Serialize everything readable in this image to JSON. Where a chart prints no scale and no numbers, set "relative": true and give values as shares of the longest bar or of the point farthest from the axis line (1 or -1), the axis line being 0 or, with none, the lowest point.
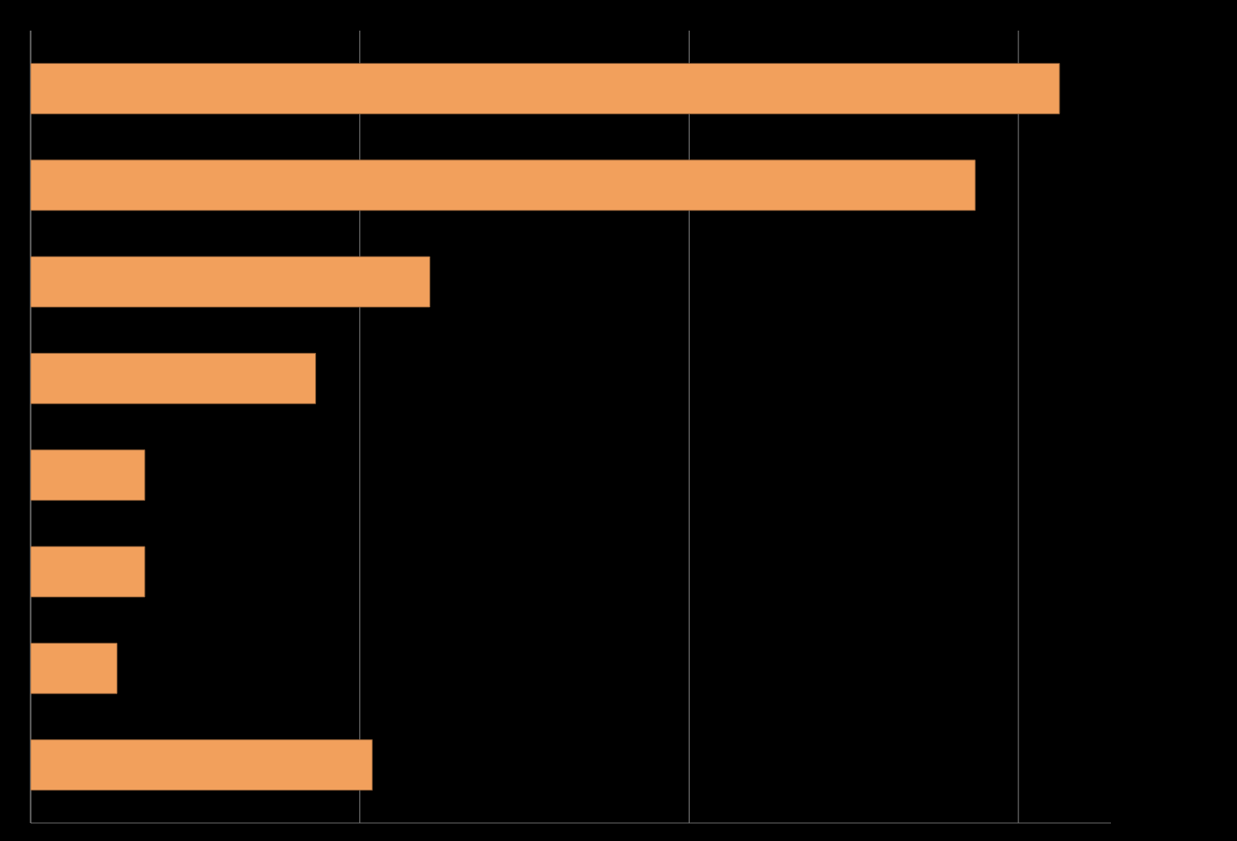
{
  "chart_data": {
    "type": "bar",
    "orientation": "horizontal",
    "relative": true,
    "grid": "x",
    "categories": [
      null,
      null,
      null,
      null,
      null,
      null,
      null,
      null
    ],
    "values": [
      1,
      0.918,
      0.388,
      0.277,
      0.111,
      0.111,
      0.084,
      0.332
    ],
    "color": "#f2a05c"
  }
}
